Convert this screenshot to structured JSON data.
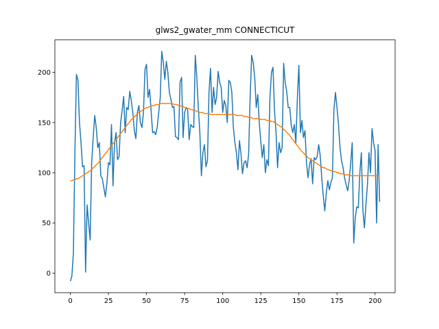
{
  "chart_data": {
    "type": "line",
    "title": "glws2_gwater_mm CONNECTICUT",
    "x": [
      0,
      1,
      2,
      3,
      4,
      5,
      6,
      7,
      8,
      9,
      10,
      11,
      12,
      13,
      14,
      15,
      16,
      17,
      18,
      19,
      20,
      21,
      22,
      23,
      24,
      25,
      26,
      27,
      28,
      29,
      30,
      31,
      32,
      33,
      34,
      35,
      36,
      37,
      38,
      39,
      40,
      41,
      42,
      43,
      44,
      45,
      46,
      47,
      48,
      49,
      50,
      51,
      52,
      53,
      54,
      55,
      56,
      57,
      58,
      59,
      60,
      61,
      62,
      63,
      64,
      65,
      66,
      67,
      68,
      69,
      70,
      71,
      72,
      73,
      74,
      75,
      76,
      77,
      78,
      79,
      80,
      81,
      82,
      83,
      84,
      85,
      86,
      87,
      88,
      89,
      90,
      91,
      92,
      93,
      94,
      95,
      96,
      97,
      98,
      99,
      100,
      101,
      102,
      103,
      104,
      105,
      106,
      107,
      108,
      109,
      110,
      111,
      112,
      113,
      114,
      115,
      116,
      117,
      118,
      119,
      120,
      121,
      122,
      123,
      124,
      125,
      126,
      127,
      128,
      129,
      130,
      131,
      132,
      133,
      134,
      135,
      136,
      137,
      138,
      139,
      140,
      141,
      142,
      143,
      144,
      145,
      146,
      147,
      148,
      149,
      150,
      151,
      152,
      153,
      154,
      155,
      156,
      157,
      158,
      159,
      160,
      161,
      162,
      163,
      164,
      165,
      166,
      167,
      168,
      169,
      170,
      171,
      172,
      173,
      174,
      175,
      176,
      177,
      178,
      179,
      180,
      181,
      182,
      183,
      184,
      185,
      186,
      187,
      188,
      189,
      190,
      191,
      192,
      193,
      194,
      195,
      196,
      197,
      198,
      199,
      200,
      201,
      202,
      203
    ],
    "series": [
      {
        "color": "#1f77b4",
        "values": [
          -8,
          -3,
          20,
          120,
          198,
          192,
          150,
          130,
          106,
          107,
          1,
          68,
          50,
          33,
          110,
          135,
          157,
          145,
          125,
          130,
          97,
          94,
          85,
          76,
          90,
          110,
          108,
          148,
          87,
          130,
          140,
          113,
          116,
          150,
          162,
          176,
          140,
          165,
          163,
          181,
          172,
          160,
          142,
          134,
          160,
          167,
          150,
          145,
          160,
          203,
          208,
          175,
          183,
          162,
          140,
          141,
          138,
          145,
          160,
          175,
          221,
          210,
          193,
          211,
          200,
          180,
          173,
          165,
          166,
          136,
          135,
          133,
          190,
          195,
          135,
          160,
          165,
          163,
          133,
          148,
          146,
          145,
          217,
          195,
          165,
          140,
          97,
          120,
          128,
          106,
          112,
          180,
          204,
          160,
          185,
          168,
          175,
          201,
          190,
          185,
          160,
          172,
          167,
          150,
          192,
          190,
          180,
          145,
          130,
          120,
          103,
          132,
          119,
          99,
          110,
          112,
          105,
          118,
          175,
          217,
          210,
          195,
          165,
          178,
          150,
          131,
          115,
          128,
          100,
          113,
          107,
          175,
          200,
          205,
          162,
          140,
          105,
          130,
          120,
          125,
          209,
          190,
          181,
          165,
          165,
          147,
          140,
          148,
          130,
          174,
          207,
          140,
          152,
          135,
          142,
          110,
          95,
          108,
          114,
          89,
          115,
          113,
          116,
          128,
          117,
          95,
          77,
          62,
          80,
          92,
          83,
          90,
          95,
          163,
          180,
          165,
          148,
          125,
          112,
          105,
          95,
          88,
          82,
          92,
          110,
          130,
          30,
          55,
          66,
          65,
          100,
          120,
          63,
          45,
          68,
          88,
          120,
          100,
          144,
          130,
          122,
          50,
          128,
          71
        ]
      },
      {
        "color": "#ff7f0e",
        "values": [
          92,
          92,
          93,
          93,
          94,
          94,
          95,
          96,
          97,
          98,
          99,
          100,
          101,
          102,
          103,
          105,
          106,
          108,
          109,
          111,
          113,
          115,
          117,
          119,
          121,
          123,
          125,
          127,
          129,
          131,
          133,
          135,
          137,
          139,
          141,
          143,
          145,
          147,
          149,
          151,
          153,
          154,
          156,
          157,
          159,
          160,
          161,
          162,
          163,
          164,
          165,
          165,
          166,
          166,
          167,
          167,
          168,
          168,
          168,
          169,
          169,
          169,
          169,
          169,
          169,
          169,
          169,
          169,
          168,
          168,
          168,
          167,
          167,
          166,
          166,
          165,
          165,
          164,
          164,
          163,
          163,
          162,
          162,
          161,
          161,
          160,
          160,
          160,
          159,
          159,
          159,
          159,
          158,
          158,
          158,
          158,
          158,
          158,
          158,
          158,
          158,
          158,
          158,
          158,
          158,
          158,
          158,
          158,
          158,
          157,
          157,
          157,
          157,
          157,
          156,
          156,
          156,
          155,
          155,
          155,
          154,
          154,
          154,
          154,
          154,
          153,
          153,
          153,
          153,
          152,
          152,
          152,
          151,
          151,
          150,
          149,
          148,
          147,
          146,
          145,
          143,
          142,
          140,
          139,
          137,
          135,
          133,
          131,
          129,
          127,
          125,
          123,
          121,
          120,
          118,
          117,
          115,
          114,
          113,
          112,
          111,
          110,
          109,
          108,
          107,
          106,
          105,
          105,
          104,
          103,
          103,
          102,
          102,
          101,
          101,
          100,
          100,
          99,
          99,
          99,
          98,
          98,
          98,
          98,
          97,
          97,
          97,
          97,
          97,
          97,
          97,
          97,
          97,
          97,
          97,
          97,
          97,
          97,
          97,
          97,
          97,
          97,
          97,
          96
        ]
      }
    ],
    "xlim": [
      -10.15,
      213.15
    ],
    "xticks": [
      0,
      25,
      50,
      75,
      100,
      125,
      150,
      175,
      200
    ],
    "ylim": [
      -19.5,
      232.5
    ],
    "yticks": [
      0,
      50,
      100,
      150,
      200
    ]
  }
}
